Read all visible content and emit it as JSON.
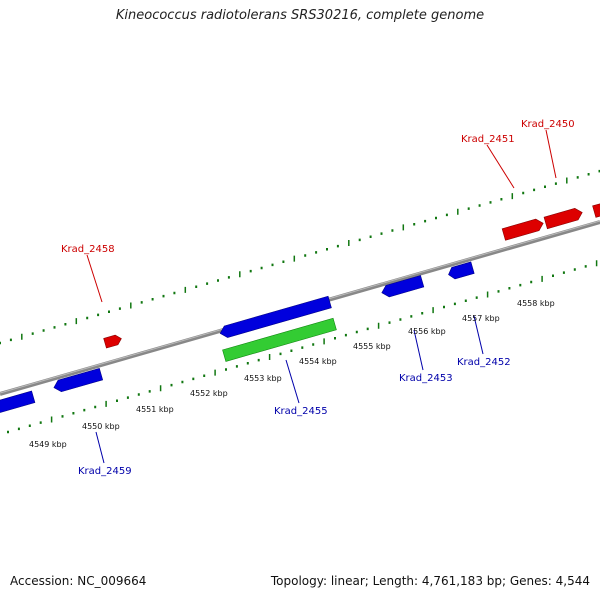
{
  "title": "Kineococcus radiotolerans SRS30216, complete genome",
  "accession": "Accession: NC_009664",
  "topology": "Topology: linear; Length: 4,761,183 bp; Genes: 4,544",
  "axis_labels": [
    "4549 kbp",
    "4550 kbp",
    "4551 kbp",
    "4552 kbp",
    "4553 kbp",
    "4554 kbp",
    "4555 kbp",
    "4556 kbp",
    "4557 kbp",
    "4558 kbp"
  ],
  "colors": {
    "forward": "#dd0000",
    "reverse": "#0000dd",
    "highlight": "#33cc33",
    "ticks": "#117711",
    "backbone": "#888888"
  },
  "labels_top": [
    {
      "text": "Krad_2458"
    },
    {
      "text": "Krad_2451"
    },
    {
      "text": "Krad_2450"
    }
  ],
  "labels_bottom": [
    {
      "text": "Krad_2459"
    },
    {
      "text": "Krad_2455"
    },
    {
      "text": "Krad_2453"
    },
    {
      "text": "Krad_2452"
    }
  ]
}
